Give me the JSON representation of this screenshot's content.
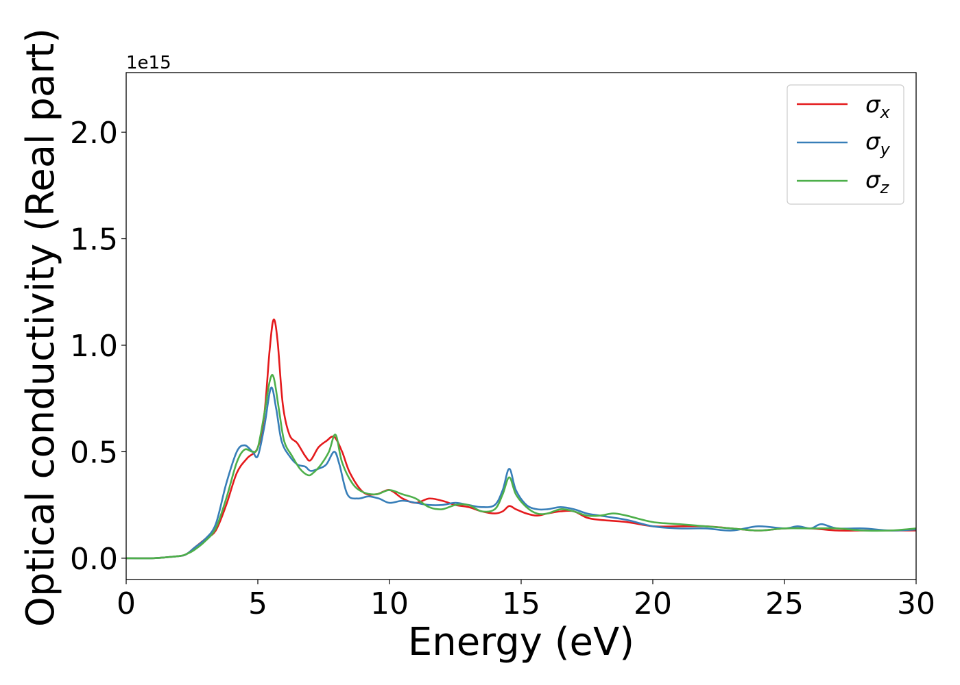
{
  "chart_data": {
    "type": "line",
    "xlabel": "Energy (eV)",
    "ylabel": "Optical conductivity (Real part)",
    "y_offset_label": "1e15",
    "xlim": [
      0,
      30
    ],
    "ylim": [
      -0.1,
      2.28
    ],
    "x_ticks": [
      0,
      5,
      10,
      15,
      20,
      25,
      30
    ],
    "x_tick_labels": [
      "0",
      "5",
      "10",
      "15",
      "20",
      "25",
      "30"
    ],
    "y_ticks": [
      0.0,
      0.5,
      1.0,
      1.5,
      2.0
    ],
    "y_tick_labels": [
      "0.0",
      "0.5",
      "1.0",
      "1.5",
      "2.0"
    ],
    "grid": false,
    "legend_position": "top-right",
    "colors": {
      "sigma_x": "#e41a1c",
      "sigma_y": "#377eb8",
      "sigma_z": "#4daf4a"
    },
    "series": [
      {
        "name": "σx",
        "symbol": "σ",
        "subscript": "x",
        "color": "#e41a1c",
        "x": [
          0,
          1,
          2,
          2.3,
          2.6,
          3.0,
          3.4,
          3.8,
          4.2,
          4.6,
          5.0,
          5.25,
          5.45,
          5.6,
          5.75,
          5.95,
          6.2,
          6.5,
          6.8,
          7.0,
          7.3,
          7.6,
          7.9,
          8.2,
          8.5,
          9.0,
          9.5,
          10.0,
          10.5,
          11.0,
          11.5,
          12.0,
          12.5,
          13.0,
          13.5,
          14.0,
          14.3,
          14.55,
          14.8,
          15.2,
          15.6,
          16.0,
          16.5,
          17.0,
          17.5,
          18.0,
          19.0,
          20.0,
          21.0,
          22.0,
          23.0,
          24.0,
          25.0,
          26.0,
          27.0,
          28.0,
          29.0,
          30.0
        ],
        "y": [
          0.0,
          0.0,
          0.01,
          0.02,
          0.05,
          0.09,
          0.13,
          0.25,
          0.4,
          0.47,
          0.52,
          0.68,
          0.98,
          1.12,
          1.02,
          0.72,
          0.58,
          0.54,
          0.48,
          0.46,
          0.52,
          0.55,
          0.57,
          0.5,
          0.4,
          0.31,
          0.3,
          0.32,
          0.28,
          0.26,
          0.28,
          0.27,
          0.25,
          0.24,
          0.22,
          0.21,
          0.22,
          0.245,
          0.23,
          0.21,
          0.2,
          0.21,
          0.22,
          0.22,
          0.19,
          0.18,
          0.17,
          0.15,
          0.15,
          0.15,
          0.14,
          0.13,
          0.14,
          0.14,
          0.13,
          0.13,
          0.13,
          0.13
        ]
      },
      {
        "name": "σy",
        "symbol": "σ",
        "subscript": "y",
        "color": "#377eb8",
        "x": [
          0,
          1,
          2,
          2.3,
          2.6,
          3.0,
          3.4,
          3.8,
          4.2,
          4.5,
          4.8,
          5.0,
          5.25,
          5.5,
          5.7,
          5.9,
          6.2,
          6.5,
          6.8,
          7.0,
          7.3,
          7.6,
          7.9,
          8.1,
          8.4,
          8.8,
          9.2,
          9.6,
          10.0,
          10.5,
          11.0,
          11.5,
          12.0,
          12.5,
          13.0,
          13.5,
          14.0,
          14.3,
          14.55,
          14.8,
          15.2,
          15.6,
          16.0,
          16.5,
          17.0,
          17.5,
          18.0,
          19.0,
          20.0,
          21.0,
          22.0,
          23.0,
          24.0,
          25.0,
          25.5,
          26.0,
          26.4,
          27.0,
          28.0,
          29.0,
          30.0
        ],
        "y": [
          0.0,
          0.0,
          0.01,
          0.02,
          0.05,
          0.09,
          0.16,
          0.35,
          0.5,
          0.53,
          0.5,
          0.48,
          0.62,
          0.8,
          0.7,
          0.55,
          0.48,
          0.44,
          0.43,
          0.41,
          0.42,
          0.44,
          0.5,
          0.44,
          0.3,
          0.28,
          0.29,
          0.28,
          0.26,
          0.27,
          0.26,
          0.25,
          0.25,
          0.26,
          0.25,
          0.24,
          0.25,
          0.32,
          0.42,
          0.32,
          0.25,
          0.23,
          0.23,
          0.24,
          0.23,
          0.21,
          0.2,
          0.18,
          0.15,
          0.14,
          0.14,
          0.13,
          0.15,
          0.14,
          0.15,
          0.14,
          0.16,
          0.14,
          0.14,
          0.13,
          0.135
        ]
      },
      {
        "name": "σz",
        "symbol": "σ",
        "subscript": "z",
        "color": "#4daf4a",
        "x": [
          0,
          1,
          2,
          2.3,
          2.6,
          3.0,
          3.4,
          3.8,
          4.2,
          4.5,
          4.8,
          5.0,
          5.25,
          5.45,
          5.6,
          5.8,
          6.0,
          6.3,
          6.6,
          6.9,
          7.1,
          7.4,
          7.7,
          7.95,
          8.2,
          8.6,
          9.0,
          9.5,
          10.0,
          10.5,
          11.0,
          11.5,
          12.0,
          12.5,
          13.0,
          13.5,
          14.0,
          14.3,
          14.55,
          14.8,
          15.2,
          15.6,
          16.0,
          16.5,
          17.0,
          17.5,
          18.0,
          18.5,
          19.0,
          20.0,
          21.0,
          22.0,
          23.0,
          24.0,
          25.0,
          26.0,
          27.0,
          28.0,
          29.0,
          30.0
        ],
        "y": [
          0.0,
          0.0,
          0.01,
          0.02,
          0.04,
          0.08,
          0.14,
          0.28,
          0.45,
          0.51,
          0.5,
          0.52,
          0.68,
          0.83,
          0.85,
          0.7,
          0.55,
          0.48,
          0.42,
          0.39,
          0.4,
          0.44,
          0.5,
          0.58,
          0.45,
          0.35,
          0.31,
          0.3,
          0.32,
          0.3,
          0.28,
          0.24,
          0.23,
          0.25,
          0.25,
          0.22,
          0.23,
          0.3,
          0.38,
          0.3,
          0.24,
          0.21,
          0.21,
          0.23,
          0.22,
          0.2,
          0.2,
          0.21,
          0.2,
          0.17,
          0.16,
          0.15,
          0.14,
          0.13,
          0.14,
          0.14,
          0.14,
          0.13,
          0.13,
          0.14
        ]
      }
    ]
  }
}
